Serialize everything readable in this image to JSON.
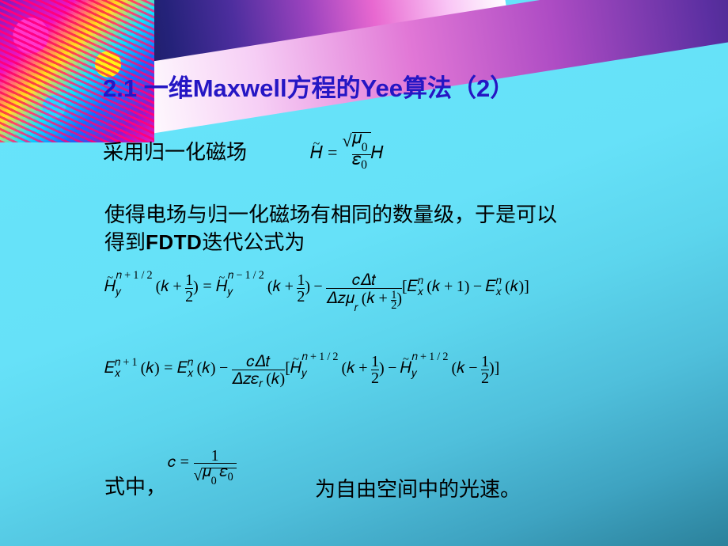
{
  "colors": {
    "title": "#2516c4",
    "text": "#000000",
    "bg_top": "#67e5fb",
    "bg_bottom": "#2b819b",
    "accent_gradient": [
      "#1a184f",
      "#242279",
      "#4d2e9e",
      "#9b43be",
      "#e868d0",
      "#f9c5f5",
      "#ffffff"
    ]
  },
  "typography": {
    "title_family": "SimHei / Arial bold",
    "title_size": 31,
    "body_family": "SimSun / Times",
    "body_size": 26,
    "equation_sizes": {
      "main": 22,
      "small": 20
    }
  },
  "title": "2.1 一维Maxwell方程的Yee算法（2）",
  "body": {
    "p1": "采用归一化磁场",
    "p2a": "使得电场与归一化磁场有相同的数量级，于是可以",
    "p2b": "得到",
    "fdtd": "FDTD",
    "p2c": "迭代公式为",
    "p3a": "式中，",
    "p3b": "为自由空间中的光速。"
  },
  "equations": {
    "eq1": "H̃ = √(μ₀/ε₀) · H",
    "eq2": "H̃_y^{n+1/2}(k+1/2) = H̃_y^{n-1/2}(k+1/2) − cΔt / (Δz μ_r(k+1/2)) · [E_x^n(k+1) − E_x^n(k)]",
    "eq3": "E_x^{n+1}(k) = E_x^n(k) − cΔt / (Δz ε_r(k)) · [H̃_y^{n+1/2}(k+1/2) − H̃_y^{n+1/2}(k−1/2)]",
    "eq4": "c = 1 / √(μ₀ ε₀)"
  }
}
